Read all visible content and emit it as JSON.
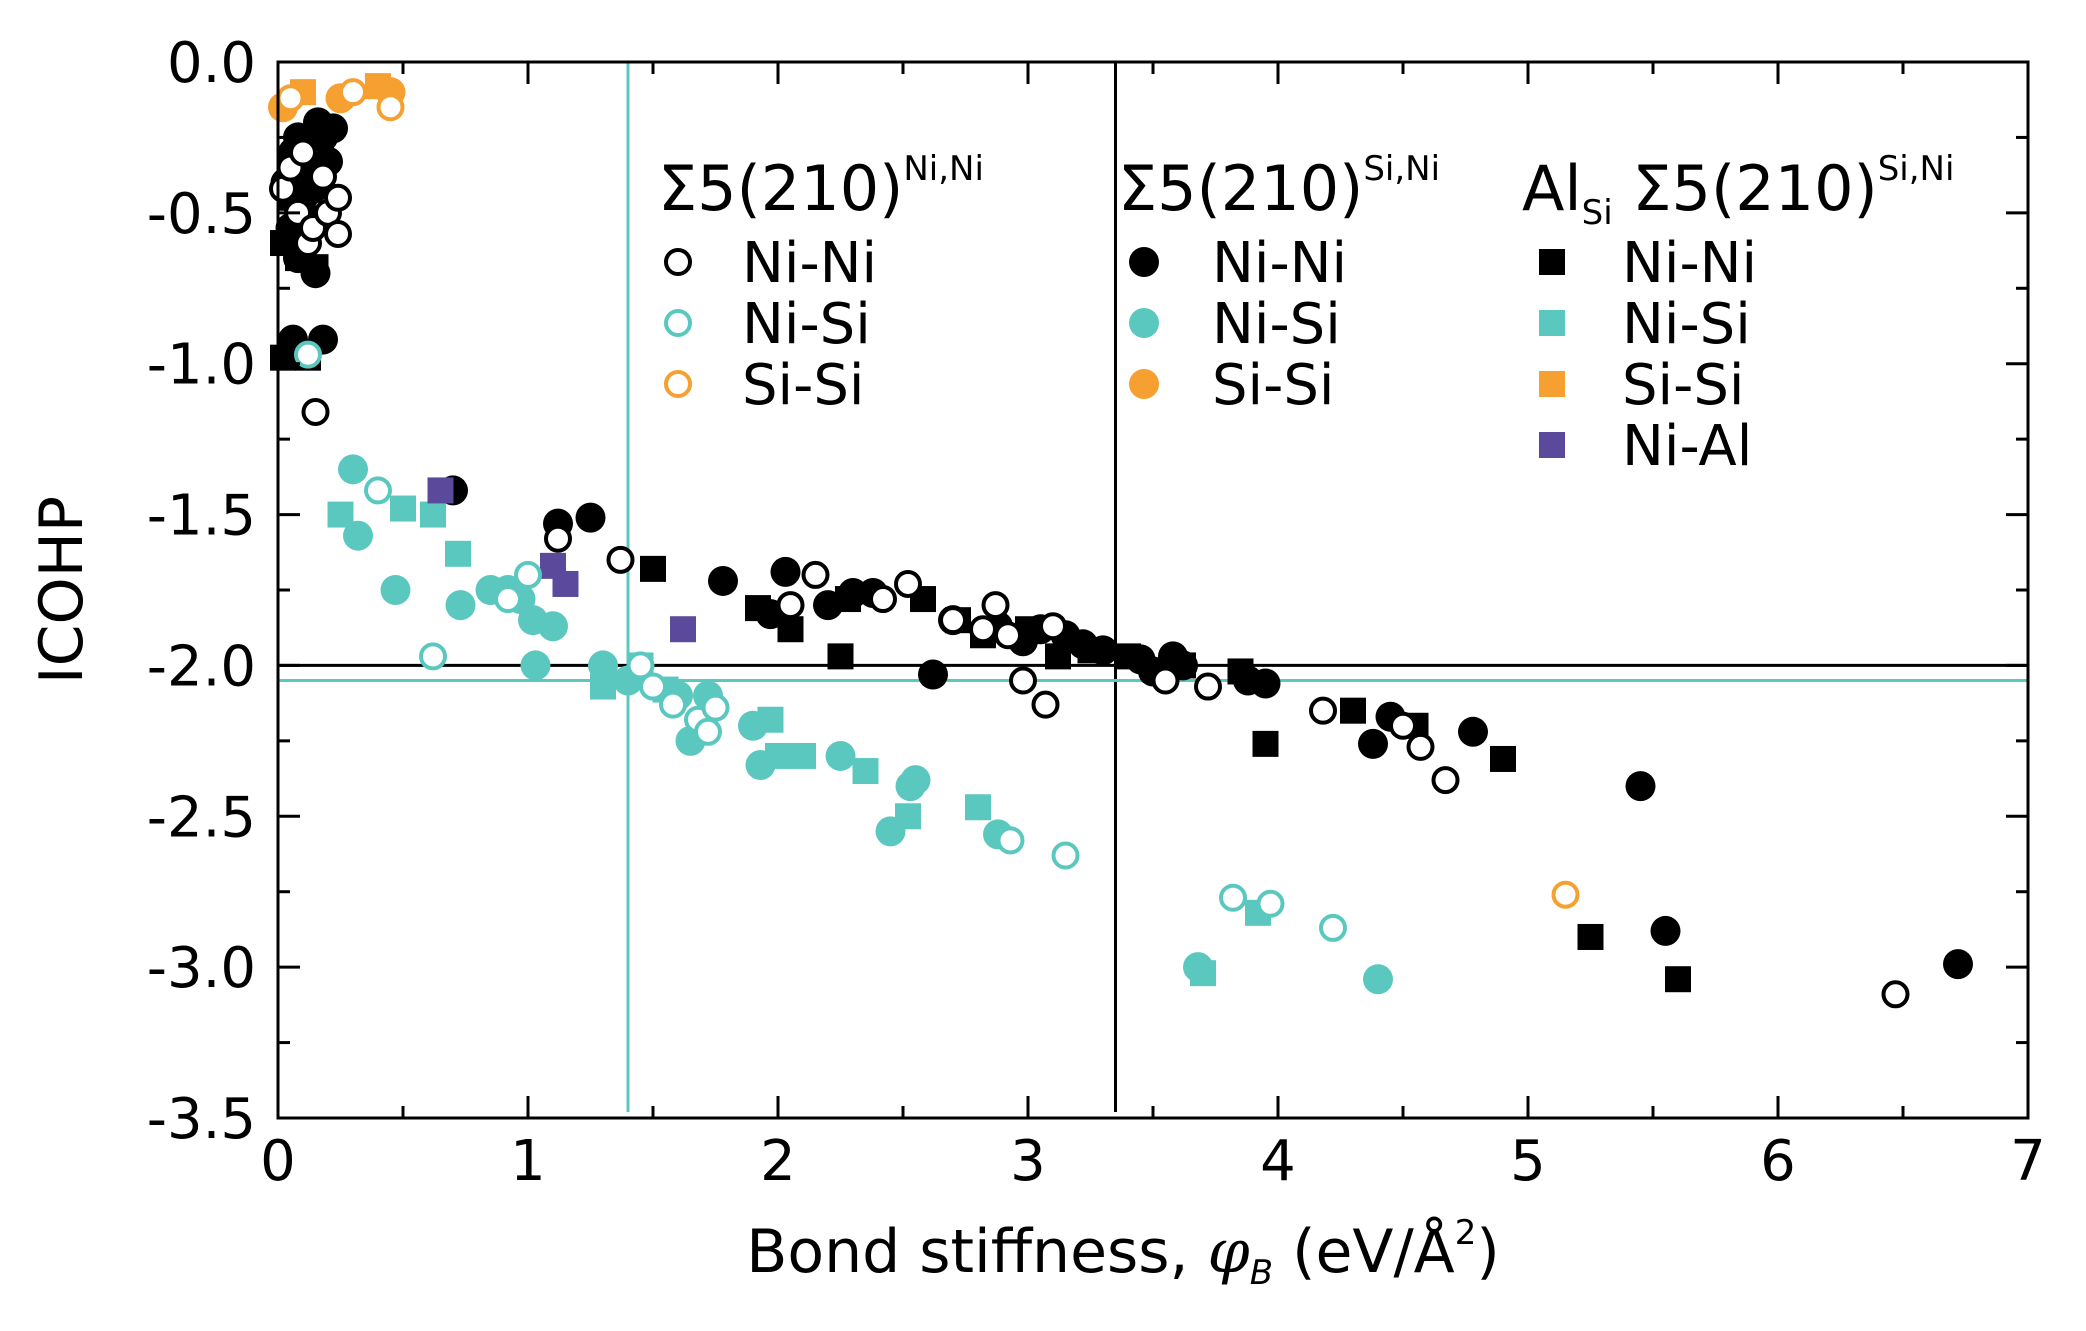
{
  "chart_data": {
    "type": "scatter",
    "xlabel": {
      "prefix": "Bond stiffness, ",
      "symbol": "φ",
      "subscript": "B",
      "suffix": " (eV/Å",
      "power": "2",
      "close": ")"
    },
    "ylabel": "ICOHP",
    "xlim": [
      0,
      7
    ],
    "ylim": [
      -3.5,
      0
    ],
    "x_ticks": [
      0,
      1,
      2,
      3,
      4,
      5,
      6,
      7
    ],
    "x_tick_labels": [
      "0",
      "1",
      "2",
      "3",
      "4",
      "5",
      "6",
      "7"
    ],
    "y_ticks": [
      0,
      -0.5,
      -1,
      -1.5,
      -2,
      -2.5,
      -3,
      -3.5
    ],
    "y_tick_labels": [
      "0.0",
      "-0.5",
      "-1.0",
      "-1.5",
      "-2.0",
      "-2.5",
      "-3.0",
      "-3.5"
    ],
    "colors": {
      "Ni-Ni": "#000000",
      "Ni-Si": "#5bc8c0",
      "Si-Si": "#f5a030",
      "Ni-Al": "#5b4a9b"
    },
    "reference_lines": [
      {
        "orientation": "vertical",
        "value": 1.4,
        "color": "#5bc8c0"
      },
      {
        "orientation": "vertical",
        "value": 3.35,
        "color": "#000000"
      },
      {
        "orientation": "horizontal",
        "value": -2.0,
        "color": "#000000"
      },
      {
        "orientation": "horizontal",
        "value": -2.05,
        "color": "#5bc8c0"
      }
    ],
    "legend_groups": [
      {
        "title": "Σ5(210)",
        "title_sup": "Ni,Ni",
        "title_prefix": "",
        "title_prefix_sub": "",
        "marker": "open-circle",
        "entries": [
          "Ni-Ni",
          "Ni-Si",
          "Si-Si"
        ]
      },
      {
        "title": "Σ5(210)",
        "title_sup": "Si,Ni",
        "title_prefix": "",
        "title_prefix_sub": "",
        "marker": "filled-circle",
        "entries": [
          "Ni-Ni",
          "Ni-Si",
          "Si-Si"
        ]
      },
      {
        "title": "Σ5(210)",
        "title_sup": "Si,Ni",
        "title_prefix": "Al",
        "title_prefix_sub": "Si",
        "marker": "square",
        "entries": [
          "Ni-Ni",
          "Ni-Si",
          "Si-Si",
          "Ni-Al"
        ]
      }
    ],
    "series": [
      {
        "group": "Σ5(210)Ni,Ni",
        "bond": "Ni-Ni",
        "marker": "open-circle",
        "points": [
          [
            0.02,
            -0.42
          ],
          [
            0.05,
            -0.35
          ],
          [
            0.08,
            -0.5
          ],
          [
            0.1,
            -0.3
          ],
          [
            0.12,
            -0.6
          ],
          [
            0.14,
            -0.55
          ],
          [
            0.18,
            -0.38
          ],
          [
            0.2,
            -0.5
          ],
          [
            0.24,
            -0.45
          ],
          [
            0.24,
            -0.57
          ],
          [
            0.15,
            -1.16
          ],
          [
            1.12,
            -1.58
          ],
          [
            1.37,
            -1.65
          ],
          [
            2.05,
            -1.8
          ],
          [
            2.15,
            -1.7
          ],
          [
            2.42,
            -1.78
          ],
          [
            2.52,
            -1.73
          ],
          [
            2.7,
            -1.85
          ],
          [
            2.82,
            -1.88
          ],
          [
            2.87,
            -1.8
          ],
          [
            2.92,
            -1.9
          ],
          [
            3.1,
            -1.87
          ],
          [
            2.98,
            -2.05
          ],
          [
            3.07,
            -2.13
          ],
          [
            3.55,
            -2.05
          ],
          [
            3.72,
            -2.07
          ],
          [
            4.18,
            -2.15
          ],
          [
            4.5,
            -2.2
          ],
          [
            4.57,
            -2.27
          ],
          [
            4.67,
            -2.38
          ],
          [
            6.47,
            -3.09
          ]
        ]
      },
      {
        "group": "Σ5(210)Ni,Ni",
        "bond": "Ni-Si",
        "marker": "open-circle",
        "points": [
          [
            0.12,
            -0.97
          ],
          [
            0.4,
            -1.42
          ],
          [
            0.62,
            -1.97
          ],
          [
            0.92,
            -1.78
          ],
          [
            1.0,
            -1.7
          ],
          [
            1.45,
            -2.0
          ],
          [
            1.5,
            -2.07
          ],
          [
            1.58,
            -2.13
          ],
          [
            1.68,
            -2.18
          ],
          [
            1.72,
            -2.22
          ],
          [
            1.75,
            -2.14
          ],
          [
            2.93,
            -2.58
          ],
          [
            3.15,
            -2.63
          ],
          [
            3.82,
            -2.77
          ],
          [
            3.97,
            -2.79
          ],
          [
            4.22,
            -2.87
          ]
        ]
      },
      {
        "group": "Σ5(210)Ni,Ni",
        "bond": "Si-Si",
        "marker": "open-circle",
        "points": [
          [
            0.05,
            -0.12
          ],
          [
            0.3,
            -0.1
          ],
          [
            0.45,
            -0.15
          ],
          [
            5.15,
            -2.76
          ]
        ]
      },
      {
        "group": "Σ5(210)Si,Ni",
        "bond": "Ni-Ni",
        "marker": "filled-circle",
        "points": [
          [
            0.03,
            -0.4
          ],
          [
            0.05,
            -0.55
          ],
          [
            0.06,
            -0.3
          ],
          [
            0.08,
            -0.25
          ],
          [
            0.1,
            -0.45
          ],
          [
            0.12,
            -0.35
          ],
          [
            0.14,
            -0.42
          ],
          [
            0.16,
            -0.2
          ],
          [
            0.18,
            -0.25
          ],
          [
            0.2,
            -0.33
          ],
          [
            0.22,
            -0.22
          ],
          [
            0.08,
            -0.65
          ],
          [
            0.15,
            -0.7
          ],
          [
            0.06,
            -0.92
          ],
          [
            0.18,
            -0.92
          ],
          [
            0.7,
            -1.42
          ],
          [
            1.12,
            -1.53
          ],
          [
            1.25,
            -1.51
          ],
          [
            1.78,
            -1.72
          ],
          [
            1.97,
            -1.83
          ],
          [
            2.03,
            -1.69
          ],
          [
            2.2,
            -1.8
          ],
          [
            2.3,
            -1.76
          ],
          [
            2.38,
            -1.76
          ],
          [
            2.62,
            -2.03
          ],
          [
            2.7,
            -1.85
          ],
          [
            2.88,
            -1.87
          ],
          [
            2.98,
            -1.92
          ],
          [
            3.05,
            -1.88
          ],
          [
            3.15,
            -1.9
          ],
          [
            3.22,
            -1.93
          ],
          [
            3.3,
            -1.95
          ],
          [
            3.45,
            -1.98
          ],
          [
            3.5,
            -2.02
          ],
          [
            3.58,
            -1.97
          ],
          [
            3.62,
            -2.0
          ],
          [
            3.88,
            -2.05
          ],
          [
            3.95,
            -2.06
          ],
          [
            4.38,
            -2.26
          ],
          [
            4.45,
            -2.17
          ],
          [
            4.78,
            -2.22
          ],
          [
            5.45,
            -2.4
          ],
          [
            5.55,
            -2.88
          ],
          [
            6.72,
            -2.99
          ]
        ]
      },
      {
        "group": "Σ5(210)Si,Ni",
        "bond": "Ni-Si",
        "marker": "filled-circle",
        "points": [
          [
            0.3,
            -1.35
          ],
          [
            0.32,
            -1.57
          ],
          [
            0.47,
            -1.75
          ],
          [
            0.73,
            -1.8
          ],
          [
            0.85,
            -1.75
          ],
          [
            0.92,
            -1.75
          ],
          [
            0.97,
            -1.78
          ],
          [
            1.02,
            -1.85
          ],
          [
            1.03,
            -2.0
          ],
          [
            1.1,
            -1.87
          ],
          [
            1.3,
            -2.0
          ],
          [
            1.4,
            -2.05
          ],
          [
            1.6,
            -2.1
          ],
          [
            1.65,
            -2.25
          ],
          [
            1.72,
            -2.1
          ],
          [
            1.9,
            -2.2
          ],
          [
            1.93,
            -2.33
          ],
          [
            2.25,
            -2.3
          ],
          [
            2.45,
            -2.55
          ],
          [
            2.53,
            -2.4
          ],
          [
            2.55,
            -2.38
          ],
          [
            2.88,
            -2.56
          ],
          [
            3.68,
            -3.0
          ],
          [
            4.4,
            -3.04
          ]
        ]
      },
      {
        "group": "Σ5(210)Si,Ni",
        "bond": "Si-Si",
        "marker": "filled-circle",
        "points": [
          [
            0.02,
            -0.15
          ],
          [
            0.25,
            -0.12
          ],
          [
            0.45,
            -0.1
          ]
        ]
      },
      {
        "group": "AlSi Σ5(210)Si,Ni",
        "bond": "Ni-Ni",
        "marker": "square",
        "points": [
          [
            0.02,
            -0.6
          ],
          [
            0.05,
            -0.45
          ],
          [
            0.08,
            -0.65
          ],
          [
            0.1,
            -0.55
          ],
          [
            0.12,
            -0.52
          ],
          [
            0.15,
            -0.68
          ],
          [
            0.02,
            -0.98
          ],
          [
            0.12,
            -0.98
          ],
          [
            1.5,
            -1.68
          ],
          [
            1.92,
            -1.81
          ],
          [
            2.05,
            -1.88
          ],
          [
            2.25,
            -1.97
          ],
          [
            2.28,
            -1.78
          ],
          [
            2.58,
            -1.78
          ],
          [
            2.72,
            -1.85
          ],
          [
            2.82,
            -1.9
          ],
          [
            3.0,
            -1.88
          ],
          [
            3.12,
            -1.97
          ],
          [
            3.25,
            -1.95
          ],
          [
            3.4,
            -1.97
          ],
          [
            3.62,
            -2.0
          ],
          [
            3.85,
            -2.02
          ],
          [
            3.95,
            -2.26
          ],
          [
            4.3,
            -2.15
          ],
          [
            4.55,
            -2.2
          ],
          [
            4.9,
            -2.31
          ],
          [
            5.25,
            -2.9
          ],
          [
            5.6,
            -3.04
          ]
        ]
      },
      {
        "group": "AlSi Σ5(210)Si,Ni",
        "bond": "Ni-Si",
        "marker": "square",
        "points": [
          [
            0.25,
            -1.5
          ],
          [
            0.5,
            -1.48
          ],
          [
            0.62,
            -1.5
          ],
          [
            0.72,
            -1.63
          ],
          [
            1.3,
            -2.07
          ],
          [
            1.45,
            -2.0
          ],
          [
            1.55,
            -2.08
          ],
          [
            1.97,
            -2.18
          ],
          [
            2.0,
            -2.3
          ],
          [
            2.1,
            -2.3
          ],
          [
            2.35,
            -2.35
          ],
          [
            2.52,
            -2.5
          ],
          [
            2.8,
            -2.47
          ],
          [
            3.7,
            -3.02
          ],
          [
            3.92,
            -2.82
          ]
        ]
      },
      {
        "group": "AlSi Σ5(210)Si,Ni",
        "bond": "Si-Si",
        "marker": "square",
        "points": [
          [
            0.1,
            -0.1
          ],
          [
            0.4,
            -0.08
          ]
        ]
      },
      {
        "group": "AlSi Σ5(210)Si,Ni",
        "bond": "Ni-Al",
        "marker": "square",
        "points": [
          [
            0.65,
            -1.42
          ],
          [
            1.1,
            -1.67
          ],
          [
            1.15,
            -1.73
          ],
          [
            1.62,
            -1.88
          ]
        ]
      }
    ]
  }
}
